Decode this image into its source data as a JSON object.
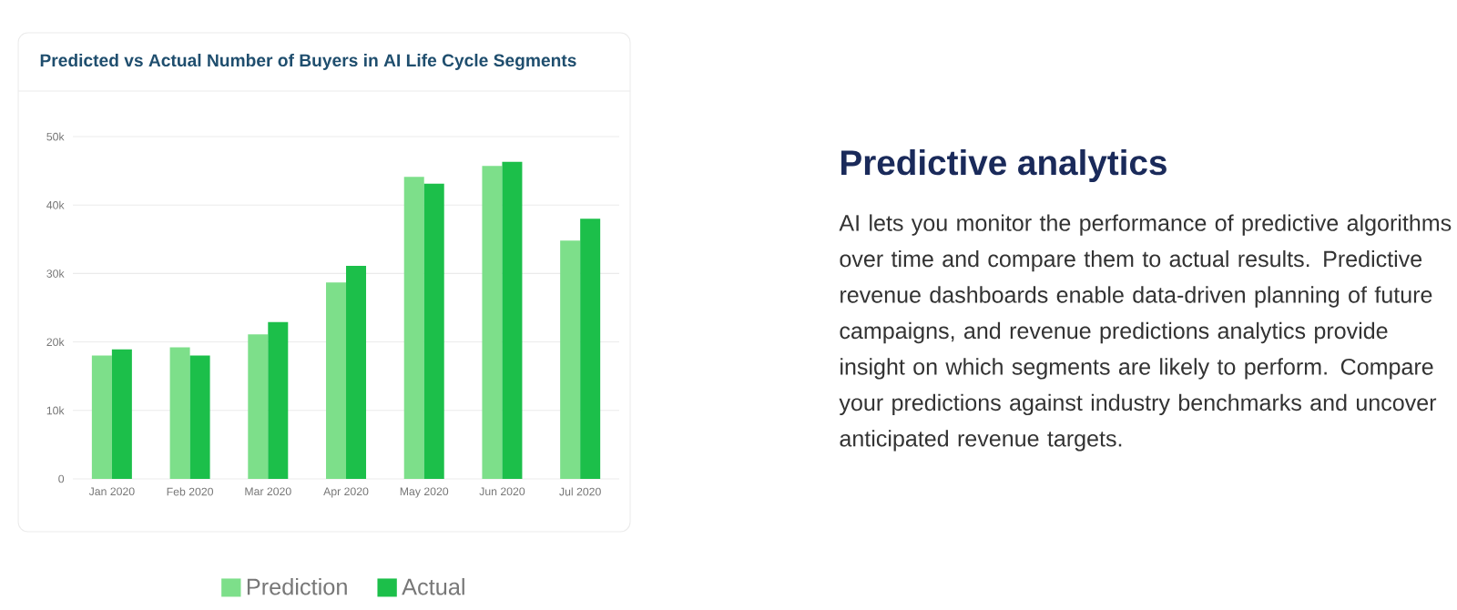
{
  "chart_data": {
    "type": "bar",
    "title": "Predicted vs Actual Number of Buyers in AI Life Cycle Segments",
    "subtitle": "Predictive analytics",
    "annotations": [
      "AI lets you monitor the performance of predictive algorithms over time and compare them to actual results. Predictive revenue dashboards enable data-driven planning of future campaigns, and revenue predictions analytics provide insight on which segments are likely to perform. Compare your predictions against industry benchmarks and uncover anticipated revenue targets."
    ],
    "categories": [
      "Jan 2020",
      "Feb 2020",
      "Mar 2020",
      "Apr 2020",
      "May 2020",
      "Jun 2020",
      "Jul 2020"
    ],
    "series": [
      {
        "name": "Prediction",
        "color": "#7ddf8a",
        "values": [
          18000,
          19200,
          21100,
          28700,
          44100,
          45700,
          34800
        ]
      },
      {
        "name": "Actual",
        "color": "#1cbf4a",
        "values": [
          18900,
          18000,
          22900,
          31100,
          43100,
          46300,
          38000
        ]
      }
    ],
    "ylim": [
      0,
      50000
    ],
    "yticks": [
      {
        "value": 0,
        "label": "0"
      },
      {
        "value": 10000,
        "label": "10k"
      },
      {
        "value": 20000,
        "label": "20k"
      },
      {
        "value": 30000,
        "label": "30k"
      },
      {
        "value": 40000,
        "label": "40k"
      },
      {
        "value": 50000,
        "label": "50k"
      }
    ],
    "grid": "y",
    "legend": "bottom"
  }
}
